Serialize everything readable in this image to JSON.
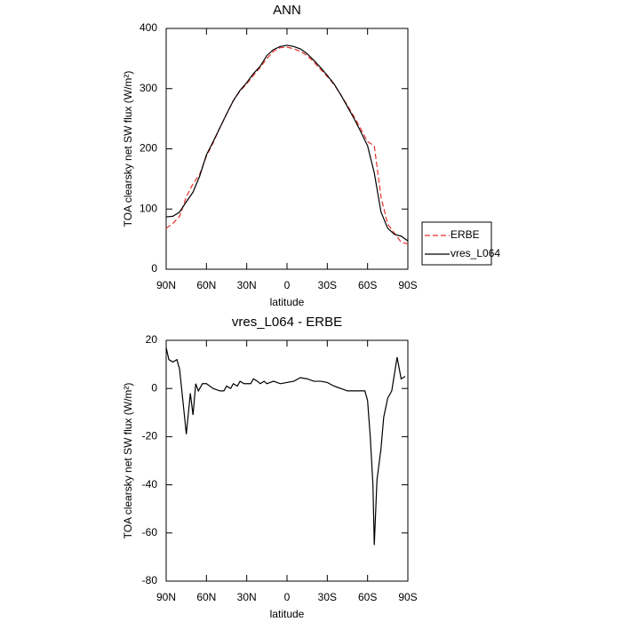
{
  "chart_data": [
    {
      "type": "line",
      "title": "ANN",
      "xlabel": "latitude",
      "ylabel": "TOA clearsky net SW flux (W/m²)",
      "x": [
        90,
        85,
        80,
        75,
        70,
        65,
        60,
        55,
        50,
        45,
        40,
        35,
        30,
        25,
        20,
        15,
        10,
        5,
        0,
        -5,
        -10,
        -15,
        -20,
        -25,
        -30,
        -35,
        -40,
        -45,
        -50,
        -55,
        -60,
        -65,
        -70,
        -75,
        -80,
        -85,
        -90
      ],
      "series": [
        {
          "name": "ERBE",
          "color": "#e8312a",
          "dash": true,
          "values": [
            68,
            76,
            88,
            120,
            142,
            158,
            188,
            210,
            235,
            258,
            280,
            296,
            308,
            322,
            335,
            350,
            362,
            368,
            369,
            366,
            362,
            355,
            344,
            332,
            320,
            307,
            290,
            272,
            253,
            233,
            212,
            205,
            120,
            75,
            60,
            45,
            42
          ]
        },
        {
          "name": "vres_L064",
          "color": "#000000",
          "dash": false,
          "values": [
            87,
            88,
            95,
            112,
            128,
            155,
            190,
            212,
            235,
            258,
            280,
            297,
            310,
            325,
            337,
            355,
            365,
            370,
            372,
            370,
            366,
            358,
            347,
            335,
            322,
            308,
            290,
            270,
            250,
            228,
            205,
            160,
            95,
            68,
            58,
            55,
            47
          ]
        }
      ],
      "xlim": [
        90,
        -90
      ],
      "ylim": [
        0,
        400
      ],
      "xticks": [
        {
          "value": 90,
          "label": "90N"
        },
        {
          "value": 60,
          "label": "60N"
        },
        {
          "value": 30,
          "label": "30N"
        },
        0,
        {
          "value": -30,
          "label": "30S"
        },
        {
          "value": -60,
          "label": "60S"
        },
        {
          "value": -90,
          "label": "90S"
        }
      ],
      "yticks": [
        0,
        100,
        200,
        300,
        400
      ],
      "legend": "right"
    },
    {
      "type": "line",
      "title": "vres_L064 - ERBE",
      "xlabel": "latitude",
      "ylabel": "TOA clearsky net SW flux (W/m²)",
      "x": [
        90,
        88,
        85,
        82,
        80,
        77,
        75,
        72,
        70,
        68,
        66,
        63,
        60,
        55,
        50,
        47,
        45,
        42,
        40,
        37,
        35,
        32,
        30,
        27,
        25,
        22,
        20,
        17,
        15,
        10,
        5,
        0,
        -5,
        -10,
        -15,
        -20,
        -25,
        -30,
        -35,
        -40,
        -45,
        -50,
        -55,
        -58,
        -60,
        -62,
        -64,
        -65,
        -67,
        -70,
        -72,
        -75,
        -78,
        -82,
        -85,
        -88
      ],
      "series": [
        {
          "name": "vres_L064",
          "color": "#000000",
          "dash": false,
          "values": [
            17,
            12,
            11,
            12,
            8,
            -8,
            -19,
            -2,
            -11,
            2,
            -1,
            2,
            2,
            0,
            -1,
            -1,
            1,
            0,
            2,
            1,
            3,
            2,
            2,
            2,
            4,
            3,
            2,
            3,
            2,
            3,
            2,
            2.5,
            3,
            4.5,
            4,
            3,
            3,
            2.5,
            1,
            0,
            -1,
            -1,
            -1,
            -1,
            -5,
            -20,
            -40,
            -65,
            -38,
            -25,
            -12,
            -4,
            -1,
            13,
            4,
            5
          ]
        }
      ],
      "xlim": [
        90,
        -90
      ],
      "ylim": [
        -80,
        20
      ],
      "xticks": [
        {
          "value": 90,
          "label": "90N"
        },
        {
          "value": 60,
          "label": "60N"
        },
        {
          "value": 30,
          "label": "30N"
        },
        0,
        {
          "value": -30,
          "label": "30S"
        },
        {
          "value": -60,
          "label": "60S"
        },
        {
          "value": -90,
          "label": "90S"
        }
      ],
      "yticks": [
        -80,
        -60,
        -40,
        -20,
        0,
        20
      ]
    }
  ]
}
